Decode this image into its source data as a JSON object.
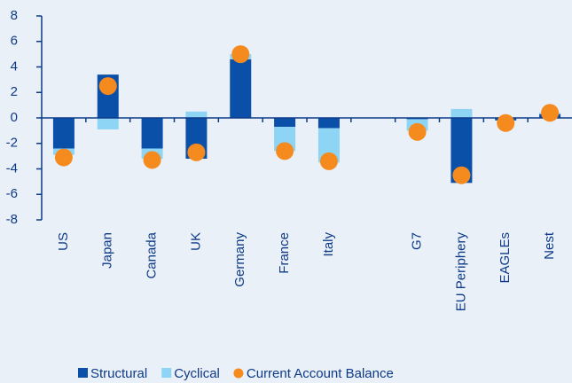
{
  "chart_data": {
    "type": "bar",
    "categories": [
      "US",
      "Japan",
      "Canada",
      "UK",
      "Germany",
      "France",
      "Italy",
      null,
      "G7",
      "EU Periphery",
      "EAGLEs",
      "Nest"
    ],
    "series": [
      {
        "name": "Structural",
        "color": "#0b50a8",
        "kind": "bar",
        "values": [
          -2.4,
          3.4,
          -2.4,
          -3.2,
          4.6,
          -0.7,
          -0.8,
          null,
          -0.1,
          -5.1,
          -0.2,
          0.3
        ]
      },
      {
        "name": "Cyclical",
        "color": "#8ed4f5",
        "kind": "bar",
        "values": [
          -0.5,
          -0.9,
          -0.8,
          0.5,
          0.4,
          -1.9,
          -2.7,
          null,
          -0.9,
          0.7,
          0,
          0.1
        ]
      },
      {
        "name": "Current Account Balance",
        "color": "#f58a1f",
        "kind": "dot",
        "values": [
          -3.1,
          2.5,
          -3.3,
          -2.7,
          5.0,
          -2.6,
          -3.4,
          null,
          -1.1,
          -4.5,
          -0.4,
          0.4
        ]
      }
    ],
    "ylim": [
      -8,
      8
    ],
    "yticks": [
      -8,
      -6,
      -4,
      -2,
      0,
      2,
      4,
      6,
      8
    ],
    "stacked": true,
    "legend": "bottom"
  }
}
